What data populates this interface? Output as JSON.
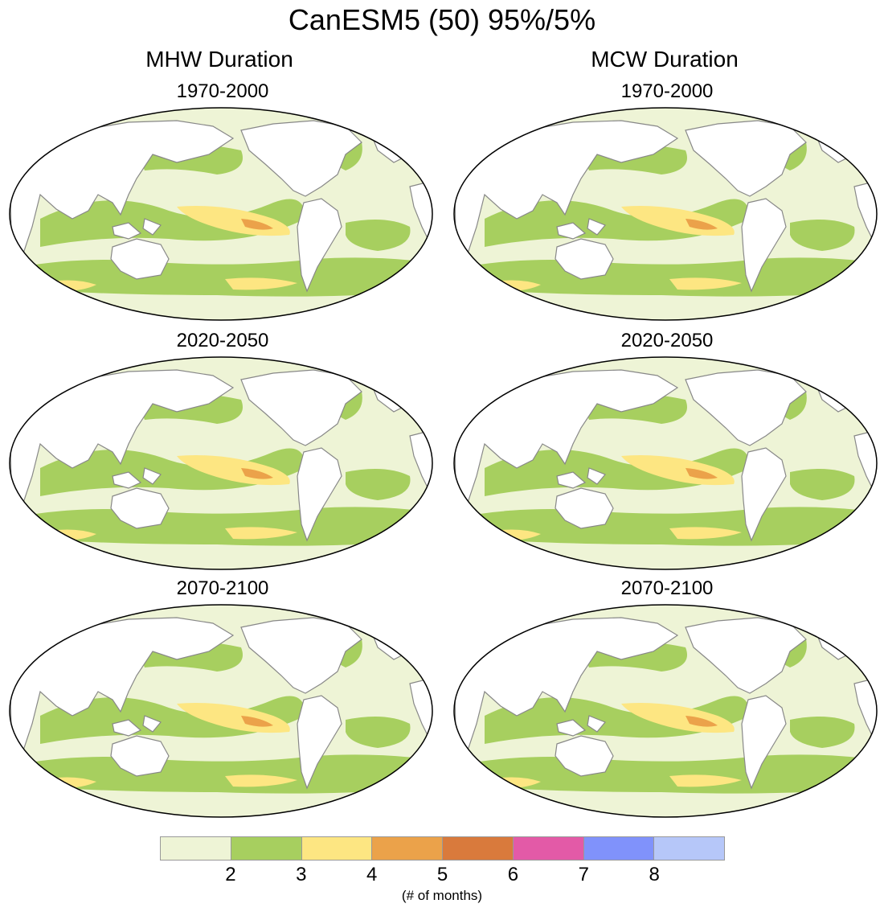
{
  "title": "CanESM5 (50) 95%/5%",
  "columns": [
    {
      "title": "MHW Duration"
    },
    {
      "title": "MCW Duration"
    }
  ],
  "panels": [
    {
      "column": "MHW Duration",
      "period": "1970-2000",
      "equatorial_peak_level": 5
    },
    {
      "column": "MHW Duration",
      "period": "2020-2050",
      "equatorial_peak_level": 5
    },
    {
      "column": "MHW Duration",
      "period": "2070-2100",
      "equatorial_peak_level": 4
    },
    {
      "column": "MCW Duration",
      "period": "1970-2000",
      "equatorial_peak_level": 4
    },
    {
      "column": "MCW Duration",
      "period": "2020-2050",
      "equatorial_peak_level": 4
    },
    {
      "column": "MCW Duration",
      "period": "2070-2100",
      "equatorial_peak_level": 4
    }
  ],
  "colorbar": {
    "colors": [
      "#eef4d6",
      "#a7cf5f",
      "#fde682",
      "#eba24a",
      "#d97a3c",
      "#e35aa7",
      "#8092fb",
      "#b6c7f9"
    ],
    "labels": [
      "2",
      "3",
      "4",
      "5",
      "6",
      "7",
      "8"
    ],
    "unit": "(# of months)"
  },
  "map_colors": {
    "land": "#ffffff",
    "coast": "#888888",
    "border": "#000000"
  }
}
